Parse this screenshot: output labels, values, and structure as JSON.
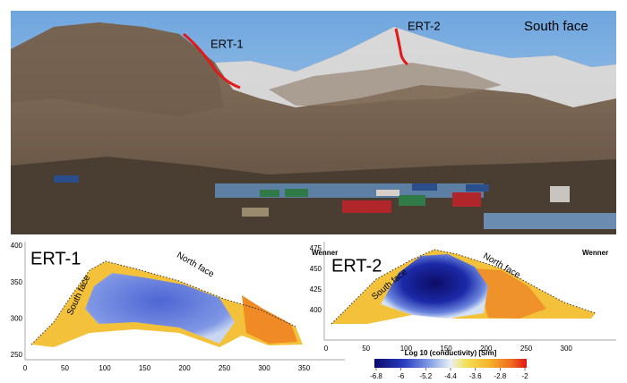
{
  "photo": {
    "labels": [
      "ERT-1",
      "ERT-2"
    ],
    "caption": "South face"
  },
  "panels": [
    {
      "title": "ERT-1",
      "method": "Wenner",
      "annotations": [
        "South face",
        "North face"
      ],
      "xticks": [
        0,
        50,
        100,
        150,
        200,
        250,
        300,
        350
      ],
      "yticks": [
        400,
        350,
        300,
        250
      ]
    },
    {
      "title": "ERT-2",
      "method": "Wenner",
      "annotations": [
        "South face",
        "North face"
      ],
      "xticks": [
        0,
        50,
        100,
        150,
        200,
        250,
        300
      ],
      "yticks": [
        475,
        450,
        425,
        400
      ]
    }
  ],
  "colorbar": {
    "label": "Log 10 (conductivity) [S/m]",
    "ticks": [
      -6.8,
      -6,
      -5.2,
      -4.4,
      -3.6,
      -2.8,
      -2
    ]
  }
}
